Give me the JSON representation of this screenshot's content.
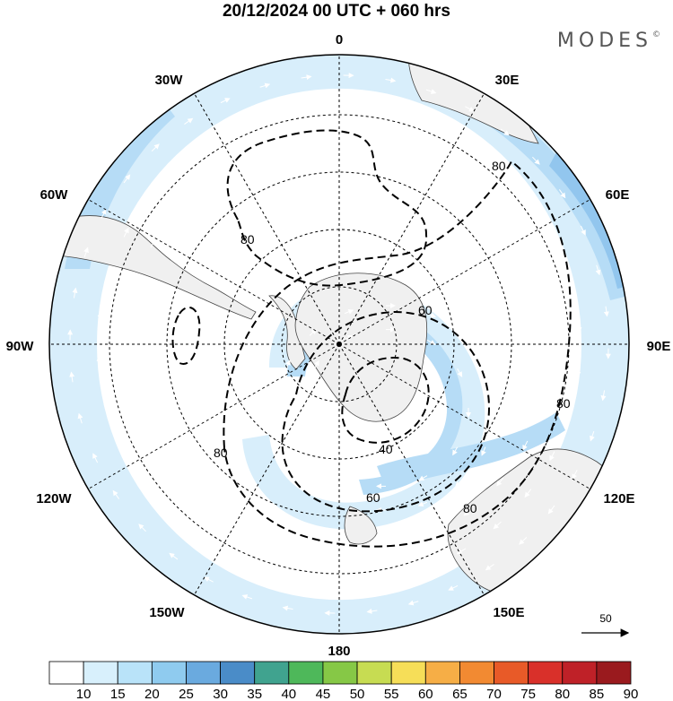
{
  "header": {
    "title": "20/12/2024  00 UTC  + 060 hrs",
    "brand": "MODES",
    "brand_mark": "©"
  },
  "map": {
    "projection": "south-polar-stereographic",
    "longitude_labels": {
      "top": "0",
      "top_left": "30W",
      "top_right": "30E",
      "upper_left": "60W",
      "upper_right": "60E",
      "left": "90W",
      "right": "90E",
      "lower_left": "120W",
      "lower_right": "120E",
      "bottom_left": "150W",
      "bottom_right": "150E",
      "bottom": "180"
    },
    "contours": {
      "label_a": "80",
      "label_b": "60",
      "label_c": "80",
      "label_d": "80",
      "label_e": "40",
      "label_f": "60",
      "label_g": "80",
      "label_h": "80"
    },
    "reference_vector": {
      "label": "50"
    }
  },
  "colorbar": {
    "ticks": [
      "10",
      "15",
      "20",
      "25",
      "30",
      "35",
      "40",
      "45",
      "50",
      "55",
      "60",
      "65",
      "70",
      "75",
      "80",
      "85",
      "90"
    ],
    "colors": [
      "#ffffff",
      "#d8f0fc",
      "#b9e3f9",
      "#8fcbef",
      "#6aaadf",
      "#4a8cc8",
      "#40a38f",
      "#4eb85a",
      "#86c846",
      "#c7dc52",
      "#f6de58",
      "#f6ae46",
      "#f28a32",
      "#e85a28",
      "#d9302a",
      "#bf2128",
      "#9a1a1e"
    ]
  },
  "colors": {
    "land": "#f0f0f0",
    "jet_light": "#d8eefb",
    "jet_medium": "#b6dcf6",
    "jet_strong": "#92c6ee"
  }
}
